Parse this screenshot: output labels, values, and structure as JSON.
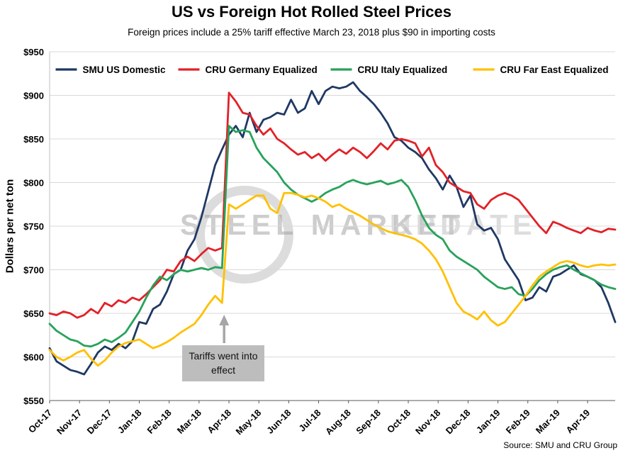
{
  "title": "US vs Foreign Hot Rolled Steel Prices",
  "subtitle": "Foreign prices include a 25% tariff effective March 23, 2018 plus $90 in importing costs",
  "source": "Source: SMU and CRU Group",
  "watermark": {
    "line1": "STEEL MARKET",
    "line2": "UPDATE"
  },
  "annotation": {
    "label": "Tariffs went into effect",
    "arrow_week": 25.3
  },
  "chart_data": {
    "type": "line",
    "title": "US vs Foreign Hot Rolled Steel Prices",
    "xlabel": "",
    "ylabel": "Dollars per net ton",
    "ylim": [
      550,
      950
    ],
    "ytick_step": 50,
    "ytick_prefix": "$",
    "grid": "horizontal",
    "legend_position": "top",
    "x_tick_labels": [
      "Oct-17",
      "Nov-17",
      "Dec-17",
      "Jan-18",
      "Feb-18",
      "Mar-18",
      "Apr-18",
      "May-18",
      "Jun-18",
      "Jul-18",
      "Aug-18",
      "Sep-18",
      "Oct-18",
      "Nov-18",
      "Dec-18",
      "Jan-19",
      "Feb-19",
      "Mar-19",
      "Apr-19"
    ],
    "weeks_per_month": 4.3333,
    "series": [
      {
        "name": "SMU US Domestic",
        "color": "#1F3864",
        "values": [
          610,
          595,
          590,
          585,
          583,
          580,
          592,
          605,
          612,
          608,
          615,
          610,
          618,
          640,
          638,
          655,
          660,
          675,
          695,
          700,
          722,
          735,
          760,
          790,
          820,
          838,
          855,
          865,
          852,
          880,
          858,
          872,
          875,
          880,
          878,
          895,
          880,
          885,
          905,
          890,
          905,
          910,
          908,
          910,
          915,
          905,
          898,
          890,
          880,
          868,
          852,
          848,
          840,
          835,
          828,
          815,
          805,
          792,
          808,
          795,
          772,
          785,
          752,
          745,
          748,
          735,
          712,
          700,
          688,
          665,
          668,
          680,
          675,
          692,
          695,
          700,
          705,
          695,
          692,
          688,
          680,
          662,
          640
        ]
      },
      {
        "name": "CRU Germany Equalized",
        "color": "#E22128",
        "values": [
          650,
          648,
          652,
          650,
          645,
          648,
          655,
          650,
          662,
          658,
          665,
          662,
          668,
          665,
          672,
          680,
          688,
          700,
          698,
          710,
          715,
          710,
          718,
          725,
          722,
          725,
          903,
          893,
          880,
          878,
          865,
          855,
          862,
          850,
          845,
          838,
          832,
          835,
          828,
          833,
          825,
          832,
          838,
          833,
          840,
          835,
          828,
          836,
          845,
          838,
          848,
          850,
          848,
          845,
          830,
          840,
          820,
          812,
          800,
          795,
          790,
          788,
          775,
          770,
          780,
          785,
          788,
          785,
          780,
          770,
          760,
          750,
          742,
          755,
          752,
          748,
          745,
          742,
          748,
          745,
          743,
          747,
          746
        ]
      },
      {
        "name": "CRU Italy Equalized",
        "color": "#27A25B",
        "values": [
          638,
          630,
          625,
          620,
          618,
          613,
          612,
          615,
          620,
          617,
          622,
          628,
          640,
          652,
          668,
          682,
          692,
          688,
          695,
          700,
          698,
          700,
          702,
          700,
          703,
          702,
          865,
          858,
          860,
          858,
          840,
          828,
          820,
          812,
          800,
          792,
          786,
          782,
          778,
          782,
          788,
          792,
          795,
          800,
          803,
          800,
          798,
          800,
          802,
          798,
          800,
          803,
          795,
          780,
          762,
          748,
          740,
          735,
          722,
          715,
          710,
          705,
          700,
          692,
          686,
          680,
          678,
          680,
          672,
          670,
          678,
          688,
          695,
          700,
          703,
          705,
          700,
          696,
          692,
          688,
          683,
          680,
          678
        ]
      },
      {
        "name": "CRU Far East Equalized",
        "color": "#FFC000",
        "values": [
          608,
          600,
          596,
          600,
          605,
          608,
          598,
          590,
          596,
          605,
          612,
          616,
          618,
          620,
          615,
          610,
          613,
          617,
          622,
          628,
          633,
          638,
          648,
          660,
          670,
          662,
          775,
          770,
          775,
          780,
          785,
          785,
          770,
          765,
          788,
          788,
          786,
          783,
          785,
          782,
          778,
          772,
          775,
          770,
          766,
          762,
          757,
          752,
          748,
          744,
          742,
          740,
          738,
          735,
          730,
          722,
          712,
          698,
          680,
          662,
          652,
          648,
          643,
          652,
          642,
          636,
          640,
          650,
          660,
          670,
          682,
          692,
          698,
          703,
          708,
          710,
          708,
          705,
          703,
          705,
          706,
          705,
          706
        ]
      }
    ]
  }
}
